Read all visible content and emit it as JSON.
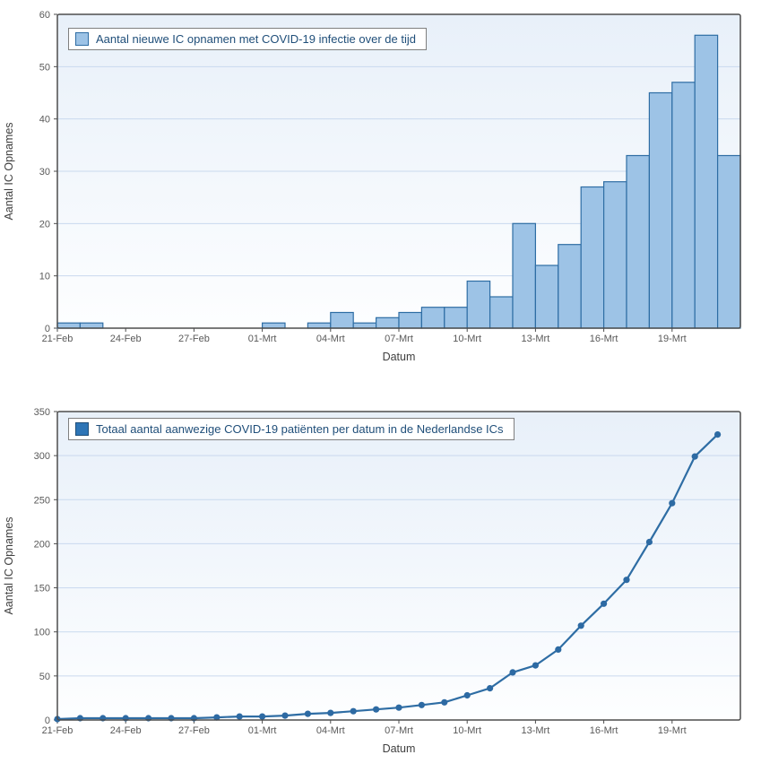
{
  "page": {
    "background": "#ffffff"
  },
  "chart_data": [
    {
      "type": "bar",
      "legend": "Aantal nieuwe IC opnamen met COVID-19 infectie over de tijd",
      "legend_position": "top-left",
      "xlabel": "Datum",
      "ylabel": "Aantal IC Opnames",
      "ylim": [
        0,
        60
      ],
      "yticks": [
        0,
        10,
        20,
        30,
        40,
        50,
        60
      ],
      "grid": "horizontal",
      "categories": [
        "21-Feb",
        "22-Feb",
        "23-Feb",
        "24-Feb",
        "25-Feb",
        "26-Feb",
        "27-Feb",
        "28-Feb",
        "29-Feb",
        "01-Mrt",
        "02-Mrt",
        "03-Mrt",
        "04-Mrt",
        "05-Mrt",
        "06-Mrt",
        "07-Mrt",
        "08-Mrt",
        "09-Mrt",
        "10-Mrt",
        "11-Mrt",
        "12-Mrt",
        "13-Mrt",
        "14-Mrt",
        "15-Mrt",
        "16-Mrt",
        "17-Mrt",
        "18-Mrt",
        "19-Mrt",
        "20-Mrt",
        "21-Mrt"
      ],
      "x_tick_labels": [
        "21-Feb",
        "24-Feb",
        "27-Feb",
        "01-Mrt",
        "04-Mrt",
        "07-Mrt",
        "10-Mrt",
        "13-Mrt",
        "16-Mrt",
        "19-Mrt"
      ],
      "values": [
        1,
        1,
        0,
        0,
        0,
        0,
        0,
        0,
        0,
        1,
        0,
        1,
        3,
        1,
        2,
        3,
        4,
        4,
        9,
        6,
        20,
        12,
        16,
        27,
        28,
        33,
        45,
        47,
        56,
        33
      ],
      "colors": {
        "bar_fill": "#9dc3e6",
        "bar_stroke": "#2e6da4",
        "swatch_fill": "#9dc3e6",
        "swatch_stroke": "#2e6da4",
        "grid": "#c9d9ee",
        "frame": "#4d4d4d",
        "tick_text": "#595959",
        "axis_title_text": "#404040",
        "legend_text": "#1f4e79",
        "plot_bg_top": "#e8f0f9",
        "plot_bg_bottom": "#fdfeff"
      }
    },
    {
      "type": "line",
      "legend": "Totaal aantal aanwezige COVID-19 patiënten per datum in de Nederlandse ICs",
      "legend_position": "top-left",
      "xlabel": "Datum",
      "ylabel": "Aantal IC Opnames",
      "ylim": [
        0,
        350
      ],
      "yticks": [
        0,
        50,
        100,
        150,
        200,
        250,
        300,
        350
      ],
      "grid": "horizontal",
      "categories": [
        "21-Feb",
        "22-Feb",
        "23-Feb",
        "24-Feb",
        "25-Feb",
        "26-Feb",
        "27-Feb",
        "28-Feb",
        "29-Feb",
        "01-Mrt",
        "02-Mrt",
        "03-Mrt",
        "04-Mrt",
        "05-Mrt",
        "06-Mrt",
        "07-Mrt",
        "08-Mrt",
        "09-Mrt",
        "10-Mrt",
        "11-Mrt",
        "12-Mrt",
        "13-Mrt",
        "14-Mrt",
        "15-Mrt",
        "16-Mrt",
        "17-Mrt",
        "18-Mrt",
        "19-Mrt",
        "20-Mrt",
        "21-Mrt"
      ],
      "x_tick_labels": [
        "21-Feb",
        "24-Feb",
        "27-Feb",
        "01-Mrt",
        "04-Mrt",
        "07-Mrt",
        "10-Mrt",
        "13-Mrt",
        "16-Mrt",
        "19-Mrt"
      ],
      "values": [
        1,
        2,
        2,
        2,
        2,
        2,
        2,
        3,
        4,
        4,
        5,
        7,
        8,
        10,
        12,
        14,
        17,
        20,
        28,
        36,
        54,
        62,
        80,
        107,
        132,
        159,
        202,
        246,
        299,
        324
      ],
      "colors": {
        "line": "#2e6da4",
        "marker": "#2d6aa3",
        "swatch_fill": "#2e75b6",
        "swatch_stroke": "#1f4e79",
        "grid": "#c9d9ee",
        "frame": "#4d4d4d",
        "tick_text": "#595959",
        "axis_title_text": "#404040",
        "legend_text": "#1f4e79",
        "plot_bg_top": "#e8f0f9",
        "plot_bg_bottom": "#fdfeff"
      }
    }
  ]
}
